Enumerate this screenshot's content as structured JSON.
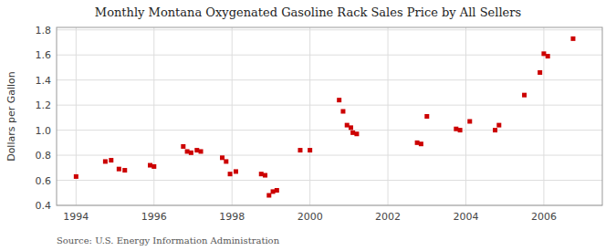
{
  "chart_data": {
    "type": "scatter",
    "title": "Monthly Montana Oxygenated Gasoline Rack Sales Price by All Sellers",
    "ylabel": "Dollars per Gallon",
    "annotations": [
      "Source: U.S. Energy Information Administration"
    ],
    "color": "#cc0000",
    "marker": "square",
    "grid": true,
    "xlim": [
      1993.5,
      2007.5
    ],
    "ylim": [
      0.4,
      1.82
    ],
    "xticks": [
      1994,
      1996,
      1998,
      2000,
      2002,
      2004,
      2006
    ],
    "yticks": [
      0.4,
      0.6,
      0.8,
      {
        "value": 1.0,
        "label": "1.0"
      },
      1.2,
      1.4,
      1.6,
      1.8
    ],
    "x": [
      1994.0,
      1994.75,
      1994.9,
      1995.1,
      1995.25,
      1995.9,
      1996.0,
      1996.75,
      1996.85,
      1996.95,
      1997.1,
      1997.2,
      1997.75,
      1997.85,
      1997.95,
      1998.1,
      1998.75,
      1998.85,
      1998.95,
      1999.05,
      1999.15,
      1999.75,
      2000.0,
      2000.75,
      2000.85,
      2000.95,
      2001.05,
      2001.1,
      2001.2,
      2002.75,
      2002.85,
      2003.0,
      2003.75,
      2003.85,
      2004.1,
      2004.75,
      2004.85,
      2005.5,
      2005.9,
      2006.0,
      2006.1,
      2006.75
    ],
    "values": [
      0.63,
      0.75,
      0.76,
      0.69,
      0.68,
      0.72,
      0.71,
      0.87,
      0.83,
      0.82,
      0.84,
      0.83,
      0.78,
      0.75,
      0.65,
      0.67,
      0.65,
      0.64,
      0.48,
      0.51,
      0.52,
      0.84,
      0.84,
      1.24,
      1.15,
      1.04,
      1.02,
      0.98,
      0.97,
      0.9,
      0.89,
      1.11,
      1.01,
      1.0,
      1.07,
      1.0,
      1.04,
      1.28,
      1.46,
      1.61,
      1.59,
      1.73
    ]
  }
}
